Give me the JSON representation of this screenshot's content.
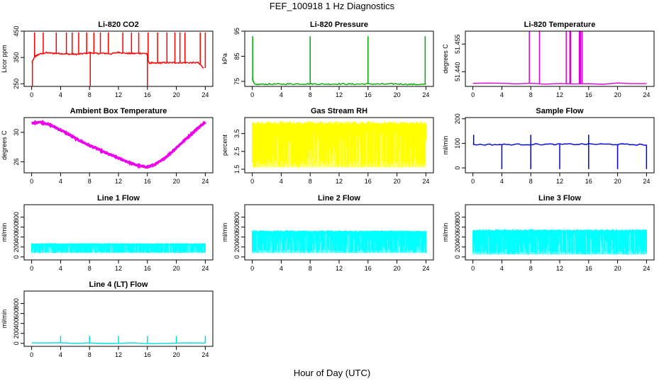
{
  "figure": {
    "title": "FEF_100918  1 Hz Diagnostics",
    "xlabel": "Hour of Day (UTC)"
  },
  "chart_data": [
    {
      "type": "line",
      "title": "Li-820 CO2",
      "ylabel": "Licor ppm",
      "color": "#ff0000",
      "xlim": [
        0,
        24
      ],
      "xticks": [
        0,
        4,
        8,
        12,
        16,
        20,
        24
      ],
      "ylim": [
        240,
        450
      ],
      "yticks": [
        250,
        350,
        450
      ],
      "series": [
        {
          "x": [
            0,
            0.5,
            1,
            2,
            3,
            4,
            5,
            6,
            7,
            8,
            9,
            10,
            11,
            12,
            13,
            14,
            15,
            15.9,
            16.2,
            17,
            18,
            19,
            20,
            21,
            22,
            23,
            23.8
          ],
          "values": [
            330,
            355,
            362,
            368,
            366,
            365,
            363,
            362,
            364,
            368,
            365,
            366,
            364,
            370,
            366,
            365,
            366,
            365,
            330,
            328,
            330,
            330,
            330,
            330,
            330,
            330,
            310
          ]
        }
      ],
      "spikes_up": [
        0.4,
        1.6,
        3.4,
        4.8,
        5.6,
        6.5,
        7.6,
        8.6,
        9.5,
        10.6,
        12.6,
        13.8,
        14.8,
        16.1,
        17.4,
        18.7,
        19.8,
        20.5,
        21.2,
        23.3,
        24
      ],
      "spikes_to": 445,
      "spikes_down": [
        0.1,
        8.1,
        16.0
      ],
      "spikes_down_to": 242
    },
    {
      "type": "line",
      "title": "Li-820 Pressure",
      "ylabel": "kPa",
      "color": "#00aa00",
      "xlim": [
        0,
        24
      ],
      "xticks": [
        0,
        4,
        8,
        12,
        16,
        20,
        24
      ],
      "ylim": [
        73,
        95
      ],
      "yticks": [
        75,
        85,
        95
      ],
      "series": [
        {
          "x": [
            0,
            0.3,
            2,
            4,
            6,
            8,
            10,
            12,
            14,
            16,
            18,
            20,
            22,
            24
          ],
          "values": [
            76,
            73.8,
            73.9,
            73.9,
            74,
            74,
            73.9,
            74,
            73.9,
            74,
            73.9,
            74,
            73.8,
            73.8
          ]
        }
      ],
      "spikes_up": [
        0.05,
        8.0,
        16.0,
        23.9
      ],
      "spikes_to": 93
    },
    {
      "type": "line",
      "title": "Li-820 Temperature",
      "ylabel": "degrees C",
      "color": "#dd00dd",
      "xlim": [
        0,
        24
      ],
      "xticks": [
        0,
        4,
        8,
        12,
        16,
        20,
        24
      ],
      "ylim": [
        51.432,
        51.462
      ],
      "yticks": [
        51.44,
        51.455
      ],
      "ytick_labels": [
        "51.440",
        "51.455"
      ],
      "extra_tick_labels": [
        "51.455"
      ],
      "series": [
        {
          "x": [
            0,
            24
          ],
          "values": [
            51.4335,
            51.4335
          ]
        }
      ],
      "spikes_up": [
        7.8,
        9.2,
        12.9,
        13.4,
        13.5,
        14.7,
        14.8,
        14.9,
        15.1
      ],
      "spikes_to": 51.462
    },
    {
      "type": "line",
      "title": "Ambient Box Temperature",
      "ylabel": "degrees C",
      "color": "#ee00ee",
      "xlim": [
        0,
        24
      ],
      "xticks": [
        0,
        4,
        8,
        12,
        16,
        20,
        24
      ],
      "ylim": [
        24.5,
        32
      ],
      "yticks": [
        26,
        30
      ],
      "series": [
        {
          "x": [
            0,
            1,
            2,
            3,
            4,
            5,
            6,
            7,
            8,
            9,
            10,
            11,
            12,
            13,
            14,
            15,
            16,
            17,
            18,
            19,
            20,
            21,
            22,
            23,
            24
          ],
          "values": [
            31.2,
            31.4,
            31.2,
            30.8,
            30.3,
            29.8,
            29.2,
            28.7,
            28.2,
            27.8,
            27.3,
            26.9,
            26.5,
            26.1,
            25.7,
            25.4,
            25.3,
            25.6,
            26.2,
            27.0,
            27.9,
            28.8,
            29.7,
            30.6,
            31.4
          ]
        }
      ]
    },
    {
      "type": "area",
      "title": "Gas Stream RH",
      "ylabel": "percent",
      "color": "#ffff00",
      "xlim": [
        0,
        24
      ],
      "xticks": [
        0,
        4,
        8,
        12,
        16,
        20,
        24
      ],
      "ylim": [
        1.3,
        4.4
      ],
      "yticks": [
        1.5,
        2.5,
        3.5
      ],
      "band_top": 4.1,
      "band_bottom": 1.6
    },
    {
      "type": "line",
      "title": "Sample Flow",
      "ylabel": "ml/min",
      "color": "#0000dd",
      "xlim": [
        0,
        24
      ],
      "xticks": [
        0,
        4,
        8,
        12,
        16,
        20,
        24
      ],
      "ylim": [
        -20,
        205
      ],
      "yticks": [
        0,
        100,
        200
      ],
      "series": [
        {
          "x": [
            0,
            4,
            8,
            12,
            16,
            20,
            24
          ],
          "values": [
            95,
            95,
            96,
            96,
            97,
            96,
            94
          ]
        }
      ],
      "spikes_up": [
        0.1,
        8.0,
        16.0
      ],
      "spikes_to": 135,
      "spikes_down": [
        4.0,
        8.0,
        12.0,
        16.0,
        20.0,
        24.0
      ],
      "spikes_down_to": -5
    },
    {
      "type": "area",
      "title": "Line 1 Flow",
      "ylabel": "ml/min",
      "color": "#00ffff",
      "xlim": [
        0,
        24
      ],
      "xticks": [
        0,
        4,
        8,
        12,
        16,
        20,
        24
      ],
      "ylim": [
        -60,
        1050
      ],
      "yticks": [
        0,
        200,
        400,
        600,
        800
      ],
      "band_top": 270,
      "band_bottom": 80
    },
    {
      "type": "area",
      "title": "Line 2 Flow",
      "ylabel": "ml/min",
      "color": "#00ffff",
      "xlim": [
        0,
        24
      ],
      "xticks": [
        0,
        4,
        8,
        12,
        16,
        20,
        24
      ],
      "ylim": [
        -60,
        1050
      ],
      "yticks": [
        0,
        200,
        400,
        600,
        800
      ],
      "band_top": 520,
      "band_bottom": 80
    },
    {
      "type": "area",
      "title": "Line 3 Flow",
      "ylabel": "ml/min",
      "color": "#00ffff",
      "xlim": [
        0,
        24
      ],
      "xticks": [
        0,
        4,
        8,
        12,
        16,
        20,
        24
      ],
      "ylim": [
        -60,
        1050
      ],
      "yticks": [
        0,
        200,
        400,
        600,
        800
      ],
      "band_top": 540,
      "band_bottom": 50
    },
    {
      "type": "line",
      "title": "Line 4 (LT) Flow",
      "ylabel": "ml/min",
      "color": "#00dddd",
      "xlim": [
        0,
        24
      ],
      "xticks": [
        0,
        4,
        8,
        12,
        16,
        20,
        24
      ],
      "ylim": [
        -60,
        1050
      ],
      "yticks": [
        0,
        200,
        400,
        600,
        800
      ],
      "series": [
        {
          "x": [
            0,
            24
          ],
          "values": [
            5,
            5
          ]
        }
      ],
      "spikes_up": [
        4.0,
        8.0,
        12.0,
        16.0,
        20.0,
        24.0
      ],
      "spikes_to": 150
    }
  ]
}
